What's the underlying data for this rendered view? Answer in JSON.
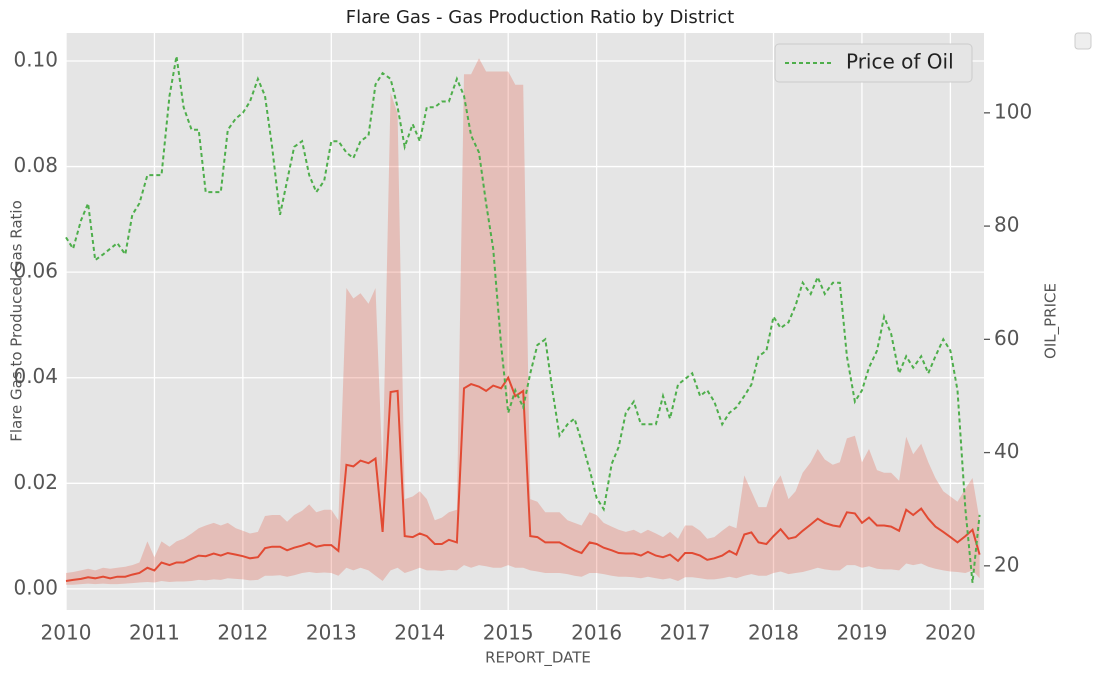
{
  "chart_data": {
    "type": "line",
    "title": "Flare Gas - Gas Production Ratio by District",
    "x_label": "REPORT_DATE",
    "y_label": "Flare Gas to Produced Gas Ratio",
    "y2_label": "OIL_PRICE",
    "x": [
      2010,
      2010.08,
      2010.17,
      2010.25,
      2010.33,
      2010.42,
      2010.5,
      2010.58,
      2010.67,
      2010.75,
      2010.83,
      2010.92,
      2011,
      2011.08,
      2011.17,
      2011.25,
      2011.33,
      2011.42,
      2011.5,
      2011.58,
      2011.67,
      2011.75,
      2011.83,
      2011.92,
      2012,
      2012.08,
      2012.17,
      2012.25,
      2012.33,
      2012.42,
      2012.5,
      2012.58,
      2012.67,
      2012.75,
      2012.83,
      2012.92,
      2013,
      2013.08,
      2013.17,
      2013.25,
      2013.33,
      2013.42,
      2013.5,
      2013.58,
      2013.67,
      2013.75,
      2013.83,
      2013.92,
      2014,
      2014.08,
      2014.17,
      2014.25,
      2014.33,
      2014.42,
      2014.5,
      2014.58,
      2014.67,
      2014.75,
      2014.83,
      2014.92,
      2015,
      2015.08,
      2015.17,
      2015.25,
      2015.33,
      2015.42,
      2015.5,
      2015.58,
      2015.67,
      2015.75,
      2015.83,
      2015.92,
      2016,
      2016.08,
      2016.17,
      2016.25,
      2016.33,
      2016.42,
      2016.5,
      2016.58,
      2016.67,
      2016.75,
      2016.83,
      2016.92,
      2017,
      2017.08,
      2017.17,
      2017.25,
      2017.33,
      2017.42,
      2017.5,
      2017.58,
      2017.67,
      2017.75,
      2017.83,
      2017.92,
      2018,
      2018.08,
      2018.17,
      2018.25,
      2018.33,
      2018.42,
      2018.5,
      2018.58,
      2018.67,
      2018.75,
      2018.83,
      2018.92,
      2019,
      2019.08,
      2019.17,
      2019.25,
      2019.33,
      2019.42,
      2019.5,
      2019.58,
      2019.67,
      2019.75,
      2019.83,
      2019.92,
      2020,
      2020.08,
      2020.17,
      2020.25,
      2020.33
    ],
    "series": [
      {
        "color": "#e24a33",
        "values": [
          0.0015,
          0.0017,
          0.0019,
          0.0022,
          0.002,
          0.0023,
          0.002,
          0.0023,
          0.0023,
          0.0027,
          0.003,
          0.004,
          0.0035,
          0.005,
          0.0045,
          0.005,
          0.005,
          0.0057,
          0.0063,
          0.0062,
          0.0067,
          0.0063,
          0.0068,
          0.0065,
          0.0062,
          0.0058,
          0.006,
          0.0077,
          0.008,
          0.008,
          0.0073,
          0.0078,
          0.0082,
          0.0087,
          0.008,
          0.0083,
          0.0083,
          0.0072,
          0.0235,
          0.0232,
          0.0243,
          0.0238,
          0.0247,
          0.0108,
          0.0373,
          0.0375,
          0.01,
          0.0098,
          0.0105,
          0.01,
          0.0085,
          0.0085,
          0.0093,
          0.0088,
          0.038,
          0.0388,
          0.0383,
          0.0375,
          0.0385,
          0.038,
          0.04,
          0.0365,
          0.0375,
          0.01,
          0.0098,
          0.0088,
          0.0088,
          0.0088,
          0.008,
          0.0073,
          0.0068,
          0.0088,
          0.0085,
          0.0078,
          0.0073,
          0.0068,
          0.0067,
          0.0067,
          0.0063,
          0.007,
          0.0063,
          0.006,
          0.0065,
          0.0053,
          0.0068,
          0.0068,
          0.0063,
          0.0055,
          0.0058,
          0.0063,
          0.0072,
          0.0065,
          0.0103,
          0.0107,
          0.0088,
          0.0085,
          0.01,
          0.0113,
          0.0095,
          0.0098,
          0.011,
          0.0122,
          0.0133,
          0.0125,
          0.012,
          0.0118,
          0.0145,
          0.0143,
          0.0125,
          0.0135,
          0.012,
          0.012,
          0.0118,
          0.011,
          0.015,
          0.014,
          0.0152,
          0.0133,
          0.0118,
          0.0108,
          0.0098,
          0.0088,
          0.01,
          0.0112,
          0.0065
        ],
        "lower": [
          0.0008,
          0.0008,
          0.0009,
          0.001,
          0.0009,
          0.001,
          0.0009,
          0.0009,
          0.001,
          0.0011,
          0.0012,
          0.0013,
          0.0012,
          0.0015,
          0.0013,
          0.0014,
          0.0014,
          0.0015,
          0.0017,
          0.0016,
          0.0018,
          0.0017,
          0.002,
          0.0019,
          0.0018,
          0.0016,
          0.0017,
          0.0025,
          0.0025,
          0.0026,
          0.0023,
          0.0026,
          0.003,
          0.0032,
          0.003,
          0.0031,
          0.003,
          0.0025,
          0.004,
          0.0035,
          0.004,
          0.0035,
          0.0025,
          0.0015,
          0.0035,
          0.004,
          0.003,
          0.0035,
          0.004,
          0.0035,
          0.0035,
          0.0034,
          0.0036,
          0.0035,
          0.0045,
          0.004,
          0.0045,
          0.0043,
          0.004,
          0.004,
          0.0045,
          0.004,
          0.004,
          0.0035,
          0.0033,
          0.003,
          0.003,
          0.003,
          0.0028,
          0.0025,
          0.0023,
          0.003,
          0.003,
          0.0028,
          0.0025,
          0.0023,
          0.0023,
          0.0022,
          0.002,
          0.0023,
          0.002,
          0.0018,
          0.002,
          0.0015,
          0.0022,
          0.0022,
          0.002,
          0.0018,
          0.0018,
          0.002,
          0.0023,
          0.002,
          0.0025,
          0.0028,
          0.0025,
          0.0025,
          0.003,
          0.0033,
          0.0028,
          0.003,
          0.0032,
          0.0036,
          0.004,
          0.0037,
          0.0035,
          0.0035,
          0.0045,
          0.0045,
          0.004,
          0.0043,
          0.0038,
          0.0037,
          0.0037,
          0.0035,
          0.0048,
          0.0045,
          0.0048,
          0.0042,
          0.0038,
          0.0035,
          0.0033,
          0.0032,
          0.003,
          0.0035,
          0.002
        ],
        "upper": [
          0.003,
          0.0032,
          0.0035,
          0.0038,
          0.0035,
          0.004,
          0.0038,
          0.004,
          0.0042,
          0.0045,
          0.005,
          0.009,
          0.006,
          0.009,
          0.008,
          0.009,
          0.0095,
          0.0105,
          0.0115,
          0.012,
          0.0125,
          0.012,
          0.0125,
          0.0115,
          0.011,
          0.0105,
          0.0108,
          0.0138,
          0.014,
          0.014,
          0.0127,
          0.014,
          0.0148,
          0.016,
          0.0145,
          0.015,
          0.015,
          0.013,
          0.057,
          0.055,
          0.056,
          0.054,
          0.057,
          0.022,
          0.094,
          0.09,
          0.017,
          0.0175,
          0.0185,
          0.017,
          0.013,
          0.0135,
          0.0145,
          0.015,
          0.0975,
          0.0975,
          0.1005,
          0.098,
          0.098,
          0.098,
          0.098,
          0.0955,
          0.0955,
          0.017,
          0.0165,
          0.0145,
          0.0145,
          0.0145,
          0.013,
          0.0125,
          0.012,
          0.0145,
          0.014,
          0.0125,
          0.0118,
          0.0112,
          0.0108,
          0.0112,
          0.0105,
          0.0112,
          0.0105,
          0.0098,
          0.0108,
          0.0095,
          0.012,
          0.012,
          0.011,
          0.0095,
          0.0098,
          0.011,
          0.012,
          0.0115,
          0.0215,
          0.0185,
          0.0155,
          0.0155,
          0.0195,
          0.0215,
          0.017,
          0.0185,
          0.022,
          0.024,
          0.0265,
          0.0245,
          0.0235,
          0.024,
          0.0285,
          0.029,
          0.024,
          0.0265,
          0.0225,
          0.022,
          0.022,
          0.0205,
          0.0288,
          0.0255,
          0.0275,
          0.024,
          0.021,
          0.0185,
          0.0175,
          0.0165,
          0.019,
          0.021,
          0.013
        ]
      },
      {
        "name": "Price of Oil",
        "color": "#4eae4b",
        "axis": "y2",
        "dashed": true,
        "values": [
          78,
          76,
          81,
          84,
          74,
          75,
          76,
          77,
          75,
          82,
          84,
          89,
          89,
          89,
          103,
          110,
          101,
          97,
          97,
          86,
          86,
          86,
          97,
          99,
          100,
          102,
          106,
          103,
          94,
          82,
          88,
          94,
          95,
          89,
          86,
          88,
          95,
          95,
          93,
          92,
          95,
          96,
          105,
          107,
          106,
          101,
          94,
          98,
          95,
          101,
          101,
          102,
          102,
          106,
          103,
          96,
          93,
          84,
          76,
          59,
          47,
          51,
          48,
          54,
          59,
          60,
          51,
          43,
          45,
          46,
          42,
          37,
          32,
          30,
          38,
          41,
          47,
          49,
          45,
          45,
          45,
          50,
          46,
          52,
          53,
          54,
          50,
          51,
          49,
          45,
          47,
          48,
          50,
          52,
          57,
          58,
          64,
          62,
          63,
          66,
          70,
          68,
          71,
          68,
          70,
          70,
          57,
          49,
          51,
          55,
          58,
          64,
          61,
          54,
          57,
          55,
          57,
          54,
          57,
          60,
          58,
          51,
          30,
          17,
          29
        ]
      }
    ],
    "xlim": [
      2010,
      2020.38
    ],
    "xticks": [
      2010,
      2011,
      2012,
      2013,
      2014,
      2015,
      2016,
      2017,
      2018,
      2019,
      2020
    ],
    "ylim": [
      -0.004,
      0.1053
    ],
    "yticks": [
      {
        "value": 0,
        "label": "0.00"
      },
      {
        "value": 0.02,
        "label": "0.02"
      },
      {
        "value": 0.04,
        "label": "0.04"
      },
      {
        "value": 0.06,
        "label": "0.06"
      },
      {
        "value": 0.08,
        "label": "0.08"
      },
      {
        "value": 0.1,
        "label": "0.10"
      }
    ],
    "y2lim": [
      12.2,
      114.1
    ],
    "y2ticks": [
      20,
      40,
      60,
      80,
      100
    ],
    "grid": true,
    "legend": "upper right"
  }
}
